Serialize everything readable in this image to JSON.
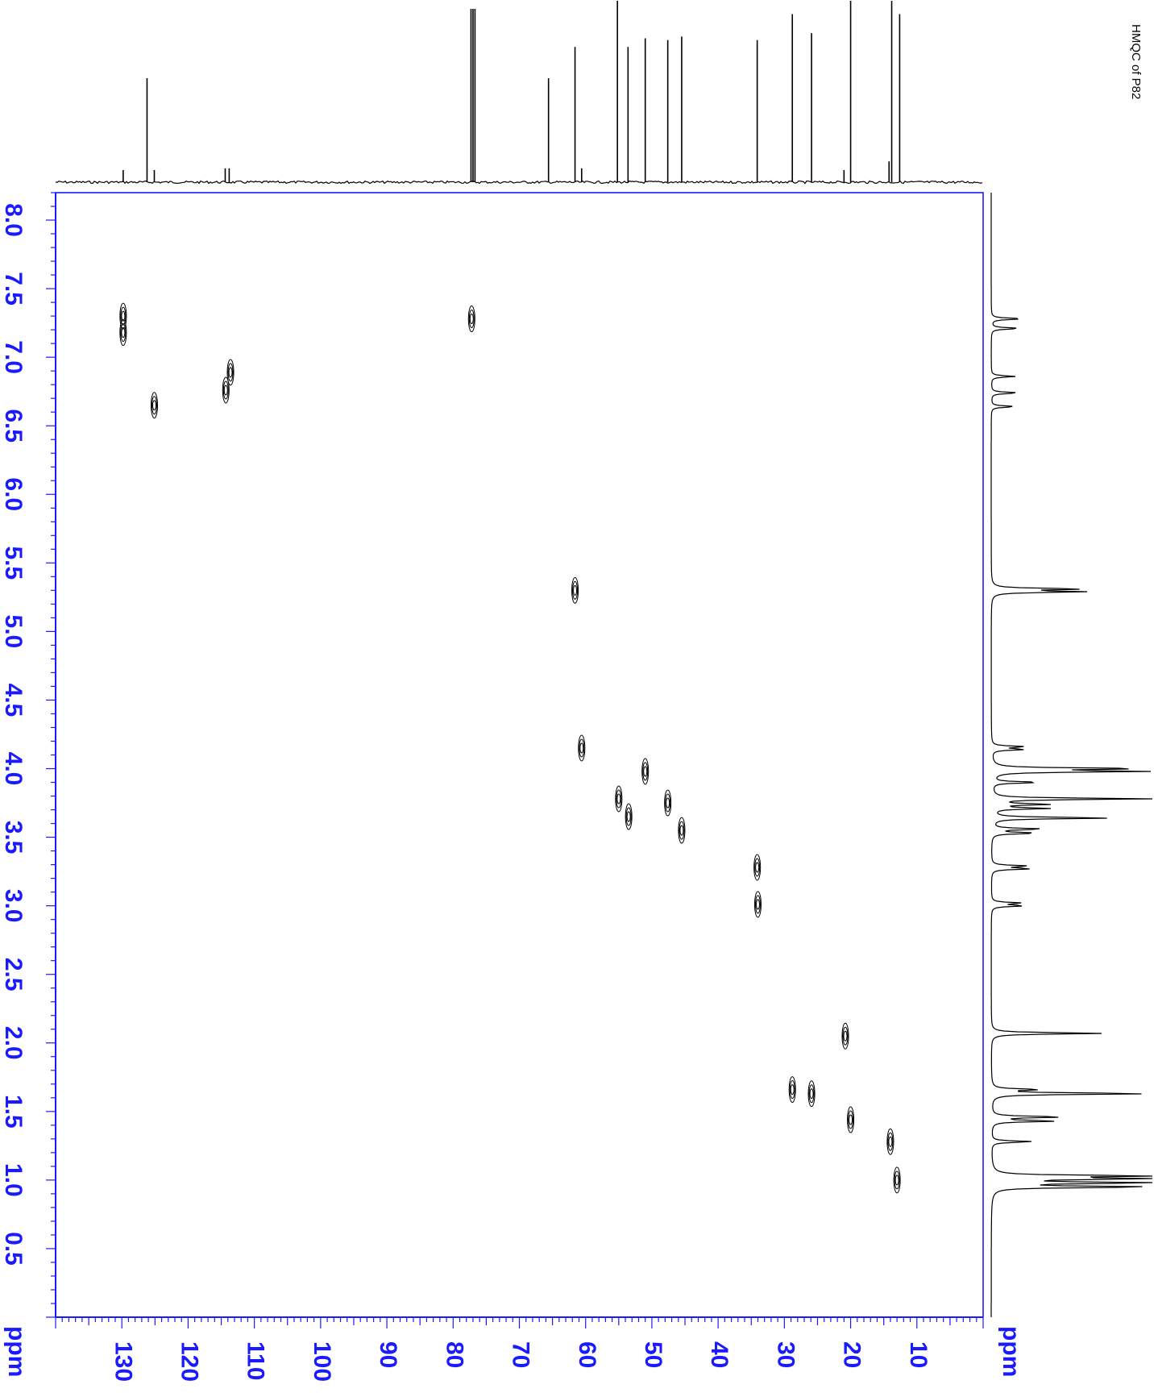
{
  "title": "HMQC of P82",
  "axis_color": "#1a1aff",
  "trace_color": "#000000",
  "chart_data": {
    "type": "heatmap",
    "subtype": "2D NMR HMQC contour plot",
    "title": "HMQC of P82",
    "x_axis": {
      "label": "ppm",
      "nucleus": "13C",
      "range": [
        140,
        0
      ],
      "reversed": true,
      "ticks": [
        130,
        120,
        110,
        100,
        90,
        80,
        70,
        60,
        50,
        40,
        30,
        20,
        10
      ],
      "tick_labels": [
        "130",
        "120",
        "110",
        "100",
        "90",
        "80",
        "70",
        "60",
        "50",
        "40",
        "30",
        "20",
        "10"
      ]
    },
    "y_axis": {
      "label": "ppm",
      "nucleus": "1H",
      "range": [
        8.2,
        0.0
      ],
      "reversed": true,
      "ticks": [
        8.0,
        7.5,
        7.0,
        6.5,
        6.0,
        5.5,
        5.0,
        4.5,
        4.0,
        3.5,
        3.0,
        2.5,
        2.0,
        1.5,
        1.0,
        0.5
      ],
      "tick_labels": [
        "8.0",
        "7.5",
        "7.0",
        "6.5",
        "6.0",
        "5.5",
        "5.0",
        "4.5",
        "4.0",
        "3.5",
        "3.0",
        "2.5",
        "2.0",
        "1.5",
        "1.0",
        "0.5"
      ]
    },
    "carbon_1d_peaks": [
      {
        "ppm": 129.8,
        "height": 0.07
      },
      {
        "ppm": 126.2,
        "height": 0.6
      },
      {
        "ppm": 125.1,
        "height": 0.07
      },
      {
        "ppm": 114.4,
        "height": 0.08
      },
      {
        "ppm": 113.8,
        "height": 0.08
      },
      {
        "ppm": 77.3,
        "height": 1.0
      },
      {
        "ppm": 77.0,
        "height": 1.0
      },
      {
        "ppm": 76.7,
        "height": 1.0
      },
      {
        "ppm": 65.6,
        "height": 0.6
      },
      {
        "ppm": 61.6,
        "height": 0.78
      },
      {
        "ppm": 60.6,
        "height": 0.08
      },
      {
        "ppm": 55.2,
        "height": 1.12
      },
      {
        "ppm": 53.6,
        "height": 0.78
      },
      {
        "ppm": 51.0,
        "height": 0.83
      },
      {
        "ppm": 47.6,
        "height": 0.82
      },
      {
        "ppm": 45.5,
        "height": 0.84
      },
      {
        "ppm": 34.1,
        "height": 0.82
      },
      {
        "ppm": 28.8,
        "height": 0.97
      },
      {
        "ppm": 25.9,
        "height": 0.86
      },
      {
        "ppm": 21.0,
        "height": 0.07
      },
      {
        "ppm": 20.0,
        "height": 1.08
      },
      {
        "ppm": 14.2,
        "height": 0.12
      },
      {
        "ppm": 13.8,
        "height": 1.12
      },
      {
        "ppm": 12.6,
        "height": 0.97
      }
    ],
    "proton_1d_peaks": [
      {
        "ppm": 7.28,
        "height": 0.2
      },
      {
        "ppm": 7.21,
        "height": 0.18
      },
      {
        "ppm": 6.86,
        "height": 0.15
      },
      {
        "ppm": 6.74,
        "height": 0.17
      },
      {
        "ppm": 6.64,
        "height": 0.15
      },
      {
        "ppm": 5.31,
        "height": 0.55
      },
      {
        "ppm": 5.29,
        "height": 0.55
      },
      {
        "ppm": 4.16,
        "height": 0.2
      },
      {
        "ppm": 4.14,
        "height": 0.2
      },
      {
        "ppm": 4.0,
        "height": 0.92
      },
      {
        "ppm": 3.98,
        "height": 0.92
      },
      {
        "ppm": 3.9,
        "height": 0.3
      },
      {
        "ppm": 3.78,
        "height": 1.0
      },
      {
        "ppm": 3.74,
        "height": 0.35
      },
      {
        "ppm": 3.71,
        "height": 0.35
      },
      {
        "ppm": 3.64,
        "height": 0.75
      },
      {
        "ppm": 3.56,
        "height": 0.32
      },
      {
        "ppm": 3.53,
        "height": 0.28
      },
      {
        "ppm": 3.29,
        "height": 0.22
      },
      {
        "ppm": 3.27,
        "height": 0.24
      },
      {
        "ppm": 3.02,
        "height": 0.18
      },
      {
        "ppm": 3.0,
        "height": 0.2
      },
      {
        "ppm": 2.07,
        "height": 0.7
      },
      {
        "ppm": 1.66,
        "height": 0.28
      },
      {
        "ppm": 1.63,
        "height": 1.0
      },
      {
        "ppm": 1.46,
        "height": 0.45
      },
      {
        "ppm": 1.43,
        "height": 0.4
      },
      {
        "ppm": 1.28,
        "height": 0.26
      },
      {
        "ppm": 1.03,
        "height": 1.0
      },
      {
        "ppm": 1.01,
        "height": 1.0
      },
      {
        "ppm": 0.98,
        "height": 1.0
      },
      {
        "ppm": 0.95,
        "height": 1.0
      }
    ],
    "cross_peaks": [
      {
        "c": 129.8,
        "h": 7.3
      },
      {
        "c": 129.8,
        "h": 7.18
      },
      {
        "c": 125.1,
        "h": 6.65
      },
      {
        "c": 114.3,
        "h": 6.76
      },
      {
        "c": 113.6,
        "h": 6.89
      },
      {
        "c": 77.2,
        "h": 7.28
      },
      {
        "c": 61.6,
        "h": 5.3
      },
      {
        "c": 60.6,
        "h": 4.15
      },
      {
        "c": 55.0,
        "h": 3.78
      },
      {
        "c": 53.5,
        "h": 3.65
      },
      {
        "c": 51.0,
        "h": 3.98
      },
      {
        "c": 47.6,
        "h": 3.75
      },
      {
        "c": 45.5,
        "h": 3.55
      },
      {
        "c": 34.1,
        "h": 3.28
      },
      {
        "c": 34.0,
        "h": 3.01
      },
      {
        "c": 28.8,
        "h": 1.66
      },
      {
        "c": 25.9,
        "h": 1.63
      },
      {
        "c": 20.0,
        "h": 1.44
      },
      {
        "c": 20.8,
        "h": 2.05
      },
      {
        "c": 14.0,
        "h": 1.28
      },
      {
        "c": 13.0,
        "h": 1.0
      }
    ]
  }
}
